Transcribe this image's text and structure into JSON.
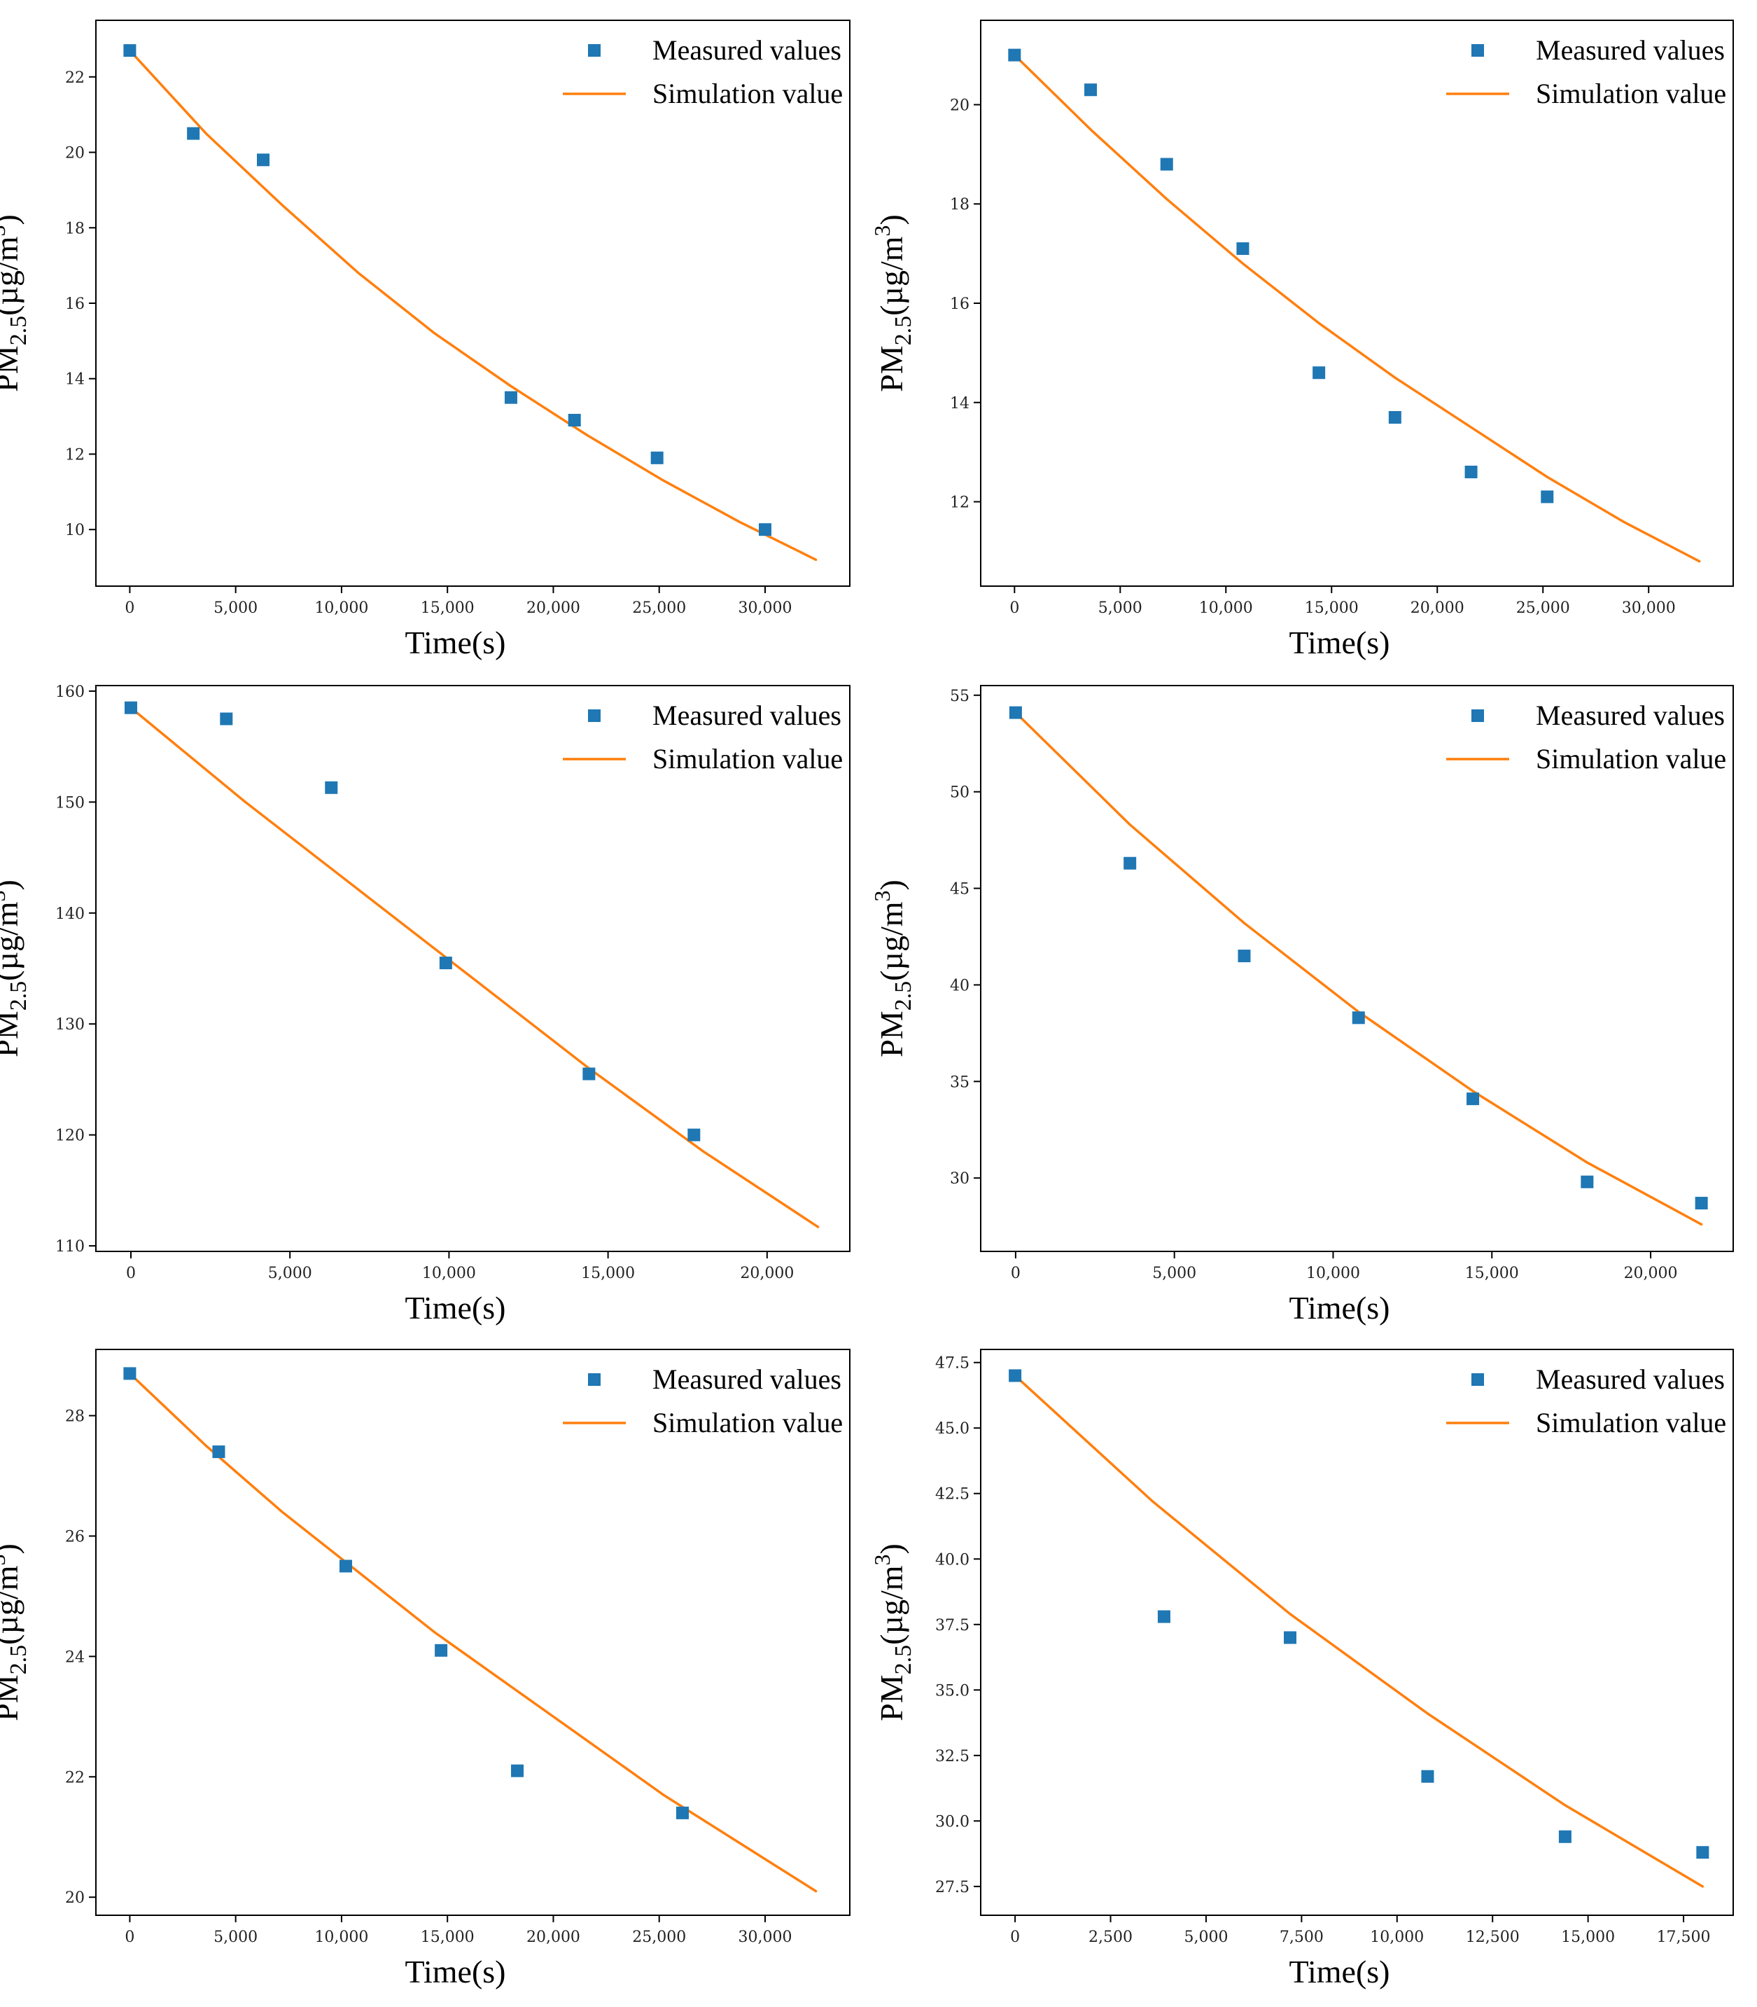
{
  "colors": {
    "measured": "#1f77b4",
    "simulation": "#ff7f0e",
    "frame": "#000000"
  },
  "chart_data": [
    {
      "type": "scatter",
      "xlabel": "Time(s)",
      "ylabel": {
        "base": "PM",
        "sub": "2.5",
        "unit": "(µg/m",
        "sup": "3",
        "close": ")"
      },
      "legend": {
        "placement": "top-right",
        "measured": "Measured values",
        "simulation": "Simulation value"
      },
      "xlim": [
        -1600,
        34000
      ],
      "ylim": [
        8.5,
        23.5
      ],
      "xticks": [
        0,
        5000,
        10000,
        15000,
        20000,
        25000,
        30000
      ],
      "xtick_labels": [
        "0",
        "5,000",
        "10,000",
        "15,000",
        "20,000",
        "25,000",
        "30,000"
      ],
      "yticks": [
        10,
        12,
        14,
        16,
        18,
        20,
        22
      ],
      "ytick_labels": [
        "10",
        "12",
        "14",
        "16",
        "18",
        "20",
        "22"
      ],
      "series": [
        {
          "kind": "measured",
          "x": [
            0,
            3000,
            6300,
            18000,
            21000,
            24900,
            30000
          ],
          "y": [
            22.7,
            20.5,
            19.8,
            13.5,
            12.9,
            11.9,
            10.0
          ]
        },
        {
          "kind": "simulation",
          "x": [
            0,
            3600,
            7200,
            10800,
            14400,
            18000,
            21600,
            25200,
            28800,
            32400
          ],
          "y": [
            22.7,
            20.5,
            18.6,
            16.8,
            15.2,
            13.8,
            12.5,
            11.3,
            10.2,
            9.2
          ]
        }
      ]
    },
    {
      "type": "scatter",
      "xlabel": "Time(s)",
      "ylabel": {
        "base": "PM",
        "sub": "2.5",
        "unit": "(µg/m",
        "sup": "3",
        "close": ")"
      },
      "legend": {
        "placement": "top-right",
        "measured": "Measured values",
        "simulation": "Simulation value"
      },
      "xlim": [
        -1600,
        34000
      ],
      "ylim": [
        10.3,
        21.7
      ],
      "xticks": [
        0,
        5000,
        10000,
        15000,
        20000,
        25000,
        30000
      ],
      "xtick_labels": [
        "0",
        "5,000",
        "10,000",
        "15,000",
        "20,000",
        "25,000",
        "30,000"
      ],
      "yticks": [
        12,
        14,
        16,
        18,
        20
      ],
      "ytick_labels": [
        "12",
        "14",
        "16",
        "18",
        "20"
      ],
      "series": [
        {
          "kind": "measured",
          "x": [
            0,
            3600,
            7200,
            10800,
            14400,
            18000,
            21600,
            25200
          ],
          "y": [
            21.0,
            20.3,
            18.8,
            17.1,
            14.6,
            13.7,
            12.6,
            12.1
          ]
        },
        {
          "kind": "simulation",
          "x": [
            0,
            3600,
            7200,
            10800,
            14400,
            18000,
            21600,
            25200,
            28800,
            32400
          ],
          "y": [
            21.0,
            19.5,
            18.1,
            16.8,
            15.6,
            14.5,
            13.5,
            12.5,
            11.6,
            10.8
          ]
        }
      ]
    },
    {
      "type": "scatter",
      "xlabel": "Time(s)",
      "ylabel": {
        "base": "PM",
        "sub": "2.5",
        "unit": "(µg/m",
        "sup": "3",
        "close": ")"
      },
      "legend": {
        "placement": "top-right",
        "measured": "Measured values",
        "simulation": "Simulation value"
      },
      "xlim": [
        -1100,
        22600
      ],
      "ylim": [
        109.5,
        160.5
      ],
      "xticks": [
        0,
        5000,
        10000,
        15000,
        20000
      ],
      "xtick_labels": [
        "0",
        "5,000",
        "10,000",
        "15,000",
        "20,000"
      ],
      "yticks": [
        110,
        120,
        130,
        140,
        150,
        160
      ],
      "ytick_labels": [
        "110",
        "120",
        "130",
        "140",
        "150",
        "160"
      ],
      "series": [
        {
          "kind": "measured",
          "x": [
            0,
            3000,
            6300,
            9900,
            14400,
            17700
          ],
          "y": [
            158.5,
            157.5,
            151.3,
            135.5,
            125.5,
            120.0
          ]
        },
        {
          "kind": "simulation",
          "x": [
            0,
            3600,
            7200,
            10800,
            14400,
            18000,
            21600
          ],
          "y": [
            158.5,
            150.0,
            142.0,
            134.0,
            126.0,
            118.5,
            111.7
          ]
        }
      ]
    },
    {
      "type": "scatter",
      "xlabel": "Time(s)",
      "ylabel": {
        "base": "PM",
        "sub": "2.5",
        "unit": "(µg/m",
        "sup": "3",
        "close": ")"
      },
      "legend": {
        "placement": "top-right",
        "measured": "Measured values",
        "simulation": "Simulation value"
      },
      "xlim": [
        -1100,
        22600
      ],
      "ylim": [
        26.2,
        55.5
      ],
      "xticks": [
        0,
        5000,
        10000,
        15000,
        20000
      ],
      "xtick_labels": [
        "0",
        "5,000",
        "10,000",
        "15,000",
        "20,000"
      ],
      "yticks": [
        30,
        35,
        40,
        45,
        50,
        55
      ],
      "ytick_labels": [
        "30",
        "35",
        "40",
        "45",
        "50",
        "55"
      ],
      "series": [
        {
          "kind": "measured",
          "x": [
            0,
            3600,
            7200,
            10800,
            14400,
            18000,
            21600
          ],
          "y": [
            54.1,
            46.3,
            41.5,
            38.3,
            34.1,
            29.8,
            28.7
          ]
        },
        {
          "kind": "simulation",
          "x": [
            0,
            3600,
            7200,
            10800,
            14400,
            18000,
            21600
          ],
          "y": [
            54.1,
            48.3,
            43.2,
            38.6,
            34.5,
            30.8,
            27.6
          ]
        }
      ]
    },
    {
      "type": "scatter",
      "xlabel": "Time(s)",
      "ylabel": {
        "base": "PM",
        "sub": "2.5",
        "unit": "(µg/m",
        "sup": "3",
        "close": ")"
      },
      "legend": {
        "placement": "top-right",
        "measured": "Measured values",
        "simulation": "Simulation value"
      },
      "xlim": [
        -1600,
        34000
      ],
      "ylim": [
        19.7,
        29.1
      ],
      "xticks": [
        0,
        5000,
        10000,
        15000,
        20000,
        25000,
        30000
      ],
      "xtick_labels": [
        "0",
        "5,000",
        "10,000",
        "15,000",
        "20,000",
        "25,000",
        "30,000"
      ],
      "yticks": [
        20,
        22,
        24,
        26,
        28
      ],
      "ytick_labels": [
        "20",
        "22",
        "24",
        "26",
        "28"
      ],
      "series": [
        {
          "kind": "measured",
          "x": [
            0,
            4200,
            10200,
            14700,
            18300,
            26100
          ],
          "y": [
            28.7,
            27.4,
            25.5,
            24.1,
            22.1,
            21.4
          ]
        },
        {
          "kind": "simulation",
          "x": [
            0,
            3600,
            7200,
            10800,
            14400,
            18000,
            21600,
            25200,
            28800,
            32400
          ],
          "y": [
            28.7,
            27.5,
            26.4,
            25.4,
            24.4,
            23.5,
            22.6,
            21.7,
            20.9,
            20.1
          ]
        }
      ]
    },
    {
      "type": "scatter",
      "xlabel": "Time(s)",
      "ylabel": {
        "base": "PM",
        "sub": "2.5",
        "unit": "(µg/m",
        "sup": "3",
        "close": ")"
      },
      "legend": {
        "placement": "top-right",
        "measured": "Measured values",
        "simulation": "Simulation value"
      },
      "xlim": [
        -900,
        18800
      ],
      "ylim": [
        26.4,
        48.0
      ],
      "xticks": [
        0,
        2500,
        5000,
        7500,
        10000,
        12500,
        15000,
        17500
      ],
      "xtick_labels": [
        "0",
        "2,500",
        "5,000",
        "7,500",
        "10,000",
        "12,500",
        "15,000",
        "17,500"
      ],
      "yticks": [
        27.5,
        30,
        32.5,
        35,
        37.5,
        40,
        42.5,
        45,
        47.5
      ],
      "ytick_labels": [
        "27.5",
        "30.0",
        "32.5",
        "35.0",
        "37.5",
        "40.0",
        "42.5",
        "45.0",
        "47.5"
      ],
      "series": [
        {
          "kind": "measured",
          "x": [
            0,
            3900,
            7200,
            10800,
            14400,
            18000
          ],
          "y": [
            47.0,
            37.8,
            37.0,
            31.7,
            29.4,
            28.8
          ]
        },
        {
          "kind": "simulation",
          "x": [
            0,
            3600,
            7200,
            10800,
            14400,
            18000
          ],
          "y": [
            47.0,
            42.2,
            37.9,
            34.1,
            30.6,
            27.5
          ]
        }
      ]
    }
  ]
}
